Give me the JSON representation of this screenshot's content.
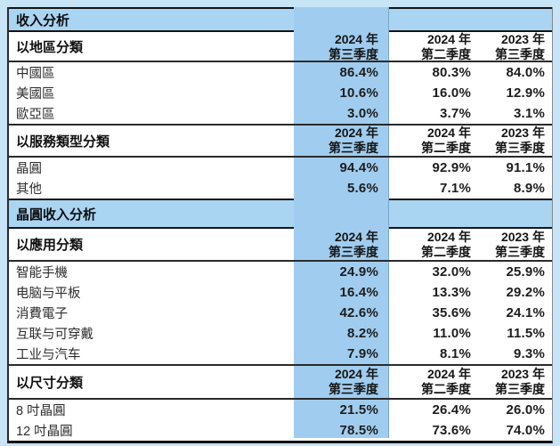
{
  "colors": {
    "page_background": "#c8e4f7",
    "band_background": "#a9d5f3",
    "highlight_column": "#a0cdef",
    "border_dark": "#141414"
  },
  "bands": {
    "revenue": "收入分析",
    "wafer": "晶圓收入分析"
  },
  "quarters": [
    "2024 年\n第三季度",
    "2024 年\n第二季度",
    "2023 年\n第三季度"
  ],
  "sections": [
    {
      "label": "以地區分類",
      "rows": [
        {
          "label": "中國區",
          "values": [
            "86.4%",
            "80.3%",
            "84.0%"
          ]
        },
        {
          "label": "美國區",
          "values": [
            "10.6%",
            "16.0%",
            "12.9%"
          ]
        },
        {
          "label": "歐亞區",
          "values": [
            "3.0%",
            "3.7%",
            "3.1%"
          ]
        }
      ]
    },
    {
      "label": "以服務類型分類",
      "rows": [
        {
          "label": "晶圓",
          "values": [
            "94.4%",
            "92.9%",
            "91.1%"
          ]
        },
        {
          "label": "其他",
          "values": [
            "5.6%",
            "7.1%",
            "8.9%"
          ]
        }
      ]
    },
    {
      "label": "以應用分類",
      "rows": [
        {
          "label": "智能手機",
          "values": [
            "24.9%",
            "32.0%",
            "25.9%"
          ]
        },
        {
          "label": "电脑与平板",
          "values": [
            "16.4%",
            "13.3%",
            "29.2%"
          ]
        },
        {
          "label": "消費電子",
          "values": [
            "42.6%",
            "35.6%",
            "24.1%"
          ]
        },
        {
          "label": "互联与可穿戴",
          "values": [
            "8.2%",
            "11.0%",
            "11.5%"
          ]
        },
        {
          "label": "工业与汽车",
          "values": [
            "7.9%",
            "8.1%",
            "9.3%"
          ]
        }
      ]
    },
    {
      "label": "以尺寸分類",
      "rows": [
        {
          "label": "8 吋晶圓",
          "values": [
            "21.5%",
            "26.4%",
            "26.0%"
          ]
        },
        {
          "label": "12 吋晶圓",
          "values": [
            "78.5%",
            "73.6%",
            "74.0%"
          ]
        }
      ]
    }
  ]
}
